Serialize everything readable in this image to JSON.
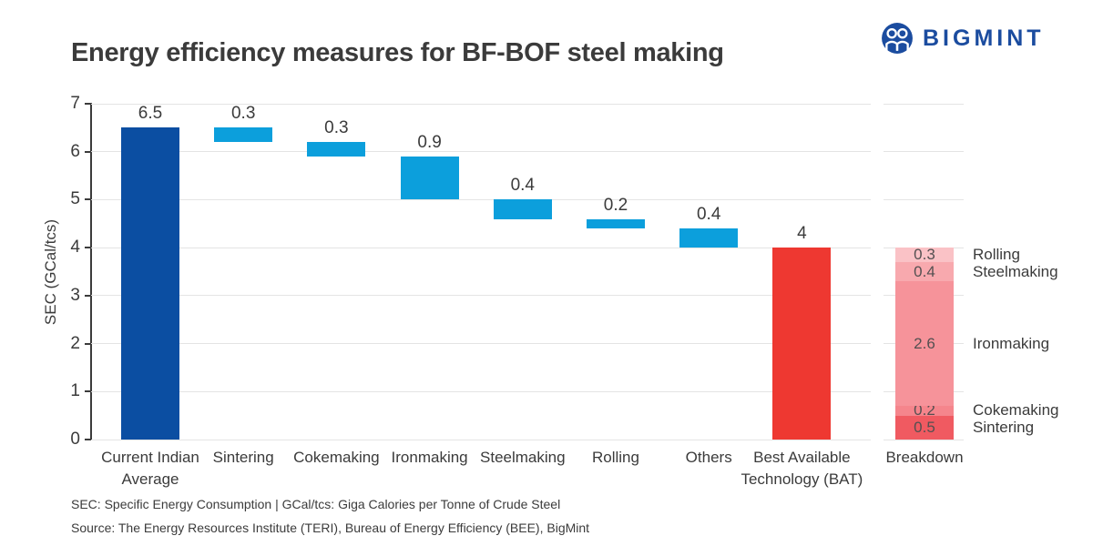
{
  "header": {
    "title": "Energy efficiency measures for BF-BOF steel making",
    "logo_text": "BIGMINT"
  },
  "colors": {
    "logo_blue": "#1B4C9F",
    "dark_blue": "#0B4EA2",
    "light_blue": "#0C9FDC",
    "red": "#EE3831",
    "grid": "#E4E4E4",
    "axis_text": "#3B3B3B",
    "breakdown_rolling": "#FAC2C6",
    "breakdown_steelmaking": "#F8A9AE",
    "breakdown_ironmaking": "#F6939A",
    "breakdown_cokemaking": "#F5858C",
    "breakdown_sintering": "#F05A61"
  },
  "chart_data": {
    "type": "bar",
    "subtype": "waterfall-with-stacked-breakdown",
    "title": "Energy efficiency measures for BF-BOF steel making",
    "xlabel": "",
    "ylabel": "SEC (GCal/tcs)",
    "ylim": [
      0,
      7
    ],
    "yticks": [
      0,
      1,
      2,
      3,
      4,
      5,
      6,
      7
    ],
    "grid": "horizontal",
    "bars": [
      {
        "label_lines": [
          "Current Indian",
          "Average"
        ],
        "value": 6.5,
        "display": "6.5",
        "from": 0,
        "to": 6.5,
        "color": "#0B4EA2"
      },
      {
        "label_lines": [
          "Sintering"
        ],
        "value": 0.3,
        "display": "0.3",
        "from": 6.2,
        "to": 6.5,
        "color": "#0C9FDC"
      },
      {
        "label_lines": [
          "Cokemaking"
        ],
        "value": 0.3,
        "display": "0.3",
        "from": 5.9,
        "to": 6.2,
        "color": "#0C9FDC"
      },
      {
        "label_lines": [
          "Ironmaking"
        ],
        "value": 0.9,
        "display": "0.9",
        "from": 5.0,
        "to": 5.9,
        "color": "#0C9FDC"
      },
      {
        "label_lines": [
          "Steelmaking"
        ],
        "value": 0.4,
        "display": "0.4",
        "from": 4.6,
        "to": 5.0,
        "color": "#0C9FDC"
      },
      {
        "label_lines": [
          "Rolling"
        ],
        "value": 0.2,
        "display": "0.2",
        "from": 4.4,
        "to": 4.6,
        "color": "#0C9FDC"
      },
      {
        "label_lines": [
          "Others"
        ],
        "value": 0.4,
        "display": "0.4",
        "from": 4.0,
        "to": 4.4,
        "color": "#0C9FDC"
      },
      {
        "label_lines": [
          "Best Available",
          "Technology (BAT)"
        ],
        "value": 4,
        "display": "4",
        "from": 0,
        "to": 4,
        "color": "#EE3831"
      }
    ],
    "breakdown": {
      "label": "Breakdown",
      "total": 4,
      "segments_bottom_to_top": [
        {
          "name": "Sintering",
          "value": 0.5,
          "color": "#F05A61"
        },
        {
          "name": "Cokemaking",
          "value": 0.2,
          "color": "#F5858C"
        },
        {
          "name": "Ironmaking",
          "value": 2.6,
          "color": "#F6939A"
        },
        {
          "name": "Steelmaking",
          "value": 0.4,
          "color": "#F8A9AE"
        },
        {
          "name": "Rolling",
          "value": 0.3,
          "color": "#FAC2C6"
        }
      ]
    }
  },
  "footnotes": {
    "line1": "SEC: Specific Energy Consumption | GCal/tcs: Giga Calories per Tonne of Crude Steel",
    "line2": "Source: The Energy Resources Institute (TERI), Bureau of Energy Efficiency (BEE), BigMint"
  }
}
